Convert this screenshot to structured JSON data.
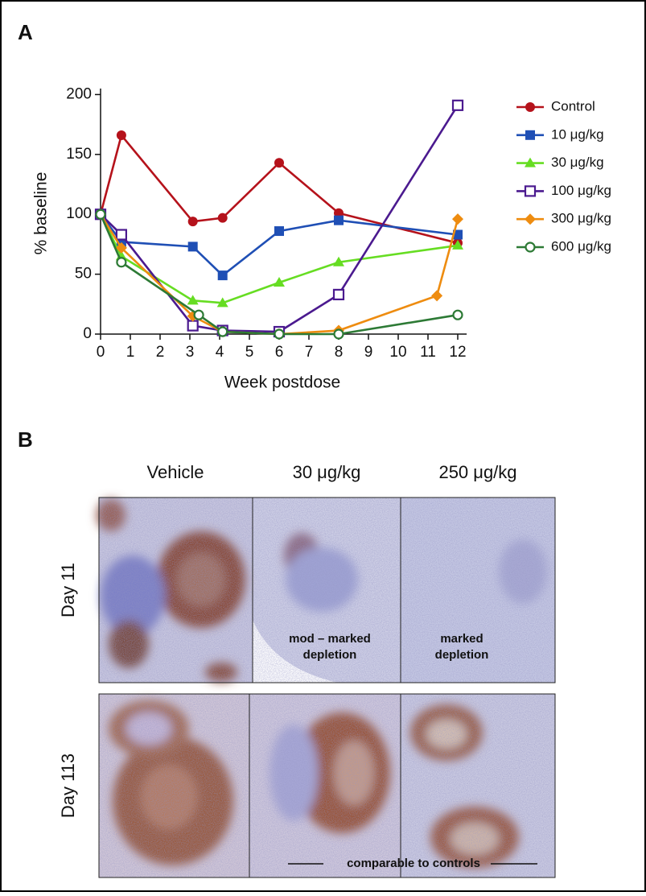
{
  "chart_data": {
    "type": "line",
    "panel_label": "A",
    "y_label": "% baseline",
    "x_label": "Week postdose",
    "xlim": [
      0,
      12.3
    ],
    "xticks": [
      0,
      1,
      2,
      3,
      4,
      5,
      6,
      7,
      8,
      9,
      10,
      11,
      12
    ],
    "ylim": [
      0,
      205
    ],
    "yticks": [
      0,
      50,
      100,
      150,
      200
    ],
    "series": [
      {
        "name": "Control",
        "color": "#b5121b",
        "marker": "circle",
        "x": [
          0,
          0.7,
          3.1,
          4.1,
          6,
          8,
          12
        ],
        "values": [
          100,
          166,
          94,
          97,
          143,
          101,
          76
        ]
      },
      {
        "name": "10 μg/kg",
        "color": "#1f4fb5",
        "marker": "square",
        "x": [
          0,
          0.7,
          3.1,
          4.1,
          6,
          8,
          12
        ],
        "values": [
          100,
          77,
          73,
          49,
          86,
          95,
          83
        ]
      },
      {
        "name": "30 μg/kg",
        "color": "#66dd22",
        "marker": "triangle",
        "x": [
          0,
          0.7,
          3.1,
          4.1,
          6,
          8,
          12
        ],
        "values": [
          100,
          65,
          28,
          26,
          43,
          60,
          74
        ]
      },
      {
        "name": "100 μg/kg",
        "color": "#4b1a8f",
        "marker": "open-square",
        "x": [
          0,
          0.7,
          3.1,
          4.1,
          6,
          8,
          12
        ],
        "values": [
          100,
          83,
          7,
          3,
          2,
          33,
          191
        ]
      },
      {
        "name": "300 μg/kg",
        "color": "#ee8c10",
        "marker": "diamond",
        "x": [
          0,
          0.7,
          3.1,
          4.1,
          6,
          8,
          11.3,
          12
        ],
        "values": [
          100,
          72,
          15,
          2,
          0,
          3,
          32,
          96
        ]
      },
      {
        "name": "600 μg/kg",
        "color": "#2d7a35",
        "marker": "open-circle",
        "x": [
          0,
          0.7,
          3.3,
          4.1,
          6,
          8,
          12
        ],
        "values": [
          100,
          60,
          16,
          2,
          0,
          0,
          16
        ]
      }
    ]
  },
  "panel_b": {
    "panel_label": "B",
    "columns": [
      "Vehicle",
      "30 μg/kg",
      "250 μg/kg"
    ],
    "rows": [
      "Day 11",
      "Day 113"
    ],
    "annotations": [
      [
        "mod – marked",
        "depletion"
      ],
      [
        "marked",
        "depletion"
      ],
      [
        "comparable to controls"
      ]
    ]
  }
}
